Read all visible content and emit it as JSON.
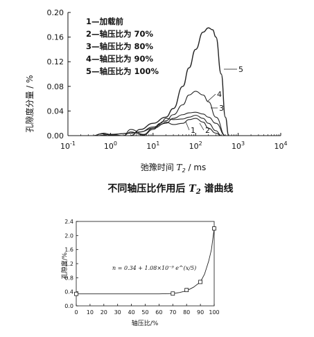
{
  "chart_data": [
    {
      "type": "line",
      "xscale": "log",
      "x_ticks": [
        "10^-1",
        "10^0",
        "10^1",
        "10^2",
        "10^3",
        "10^4"
      ],
      "y_ticks": [
        "0.00",
        "0.04",
        "0.08",
        "0.12",
        "0.16",
        "0.20"
      ],
      "xlim": [
        0.1,
        10000
      ],
      "ylim": [
        0,
        0.2
      ],
      "ylabel": "孔隙度分量 / %",
      "xlabel": "弛豫时间 T2 / ms",
      "legend": [
        "1—加载前",
        "2—轴压比为 70%",
        "3—轴压比为 80%",
        "4—轴压比为 90%",
        "5—轴压比为 100%"
      ],
      "curve_labels": [
        "1",
        "2",
        "3",
        "4",
        "5"
      ],
      "legend_placement": "top-left",
      "series": [
        {
          "name": "1—加载前",
          "x": [
            0.4,
            0.6,
            1,
            2,
            3,
            6,
            10,
            15,
            20,
            30,
            50,
            70,
            100,
            150,
            200,
            300,
            400
          ],
          "y": [
            0.0,
            0.003,
            0.001,
            0.0,
            0.006,
            0.001,
            0.01,
            0.018,
            0.022,
            0.018,
            0.02,
            0.026,
            0.028,
            0.022,
            0.012,
            0.004,
            0.0
          ]
        },
        {
          "name": "2—轴压比为 70%",
          "x": [
            0.4,
            0.7,
            1,
            2,
            3,
            6,
            10,
            15,
            20,
            30,
            50,
            70,
            100,
            150,
            200,
            300,
            400
          ],
          "y": [
            0.0,
            0.004,
            0.002,
            0.0,
            0.01,
            0.002,
            0.012,
            0.02,
            0.028,
            0.026,
            0.027,
            0.03,
            0.033,
            0.028,
            0.02,
            0.008,
            0.0
          ]
        },
        {
          "name": "3—轴压比为 80%",
          "x": [
            0.5,
            1,
            3,
            5,
            10,
            20,
            30,
            50,
            70,
            100,
            150,
            200,
            300,
            500
          ],
          "y": [
            0.0,
            0.002,
            0.004,
            0.006,
            0.012,
            0.02,
            0.028,
            0.034,
            0.037,
            0.038,
            0.035,
            0.03,
            0.02,
            0.0
          ]
        },
        {
          "name": "4—轴压比为 90%",
          "x": [
            0.5,
            1,
            3,
            5,
            10,
            20,
            30,
            50,
            70,
            100,
            150,
            200,
            300,
            500
          ],
          "y": [
            0.0,
            0.002,
            0.004,
            0.006,
            0.014,
            0.024,
            0.034,
            0.05,
            0.066,
            0.072,
            0.066,
            0.055,
            0.03,
            0.0
          ]
        },
        {
          "name": "5—轴压比为 100%",
          "x": [
            3,
            5,
            10,
            20,
            30,
            50,
            70,
            100,
            150,
            200,
            250,
            300,
            400,
            500,
            600
          ],
          "y": [
            0.0,
            0.01,
            0.02,
            0.03,
            0.044,
            0.08,
            0.11,
            0.14,
            0.168,
            0.175,
            0.172,
            0.16,
            0.1,
            0.03,
            0.0
          ]
        }
      ]
    },
    {
      "type": "scatter",
      "x_ticks": [
        "0",
        "10",
        "20",
        "30",
        "40",
        "50",
        "60",
        "70",
        "80",
        "90",
        "100"
      ],
      "y_ticks": [
        "0.0",
        "0.4",
        "0.8",
        "1.2",
        "1.6",
        "2.0",
        "2.4"
      ],
      "xlim": [
        0,
        100
      ],
      "ylim": [
        0,
        2.4
      ],
      "xlabel": "轴压比/%",
      "ylabel": "孔隙度/%",
      "equation": "n = 0.34 + 1.08×10⁻⁹ e^(x/5)",
      "series": [
        {
          "name": "",
          "x": [
            0,
            70,
            80,
            90,
            100
          ],
          "y": [
            0.34,
            0.35,
            0.45,
            0.68,
            2.2
          ]
        }
      ],
      "fit": {
        "x": [
          0,
          20,
          40,
          60,
          70,
          75,
          80,
          85,
          90,
          93,
          96,
          98,
          100
        ],
        "y": [
          0.34,
          0.34,
          0.34,
          0.34,
          0.35,
          0.38,
          0.43,
          0.53,
          0.68,
          0.9,
          1.27,
          1.6,
          2.2
        ]
      }
    }
  ],
  "caption": {
    "before": "不同轴压比作用后 ",
    "t": "T",
    "sub": "2",
    "after": " 谱曲线"
  },
  "colors": {
    "axis": "#111111",
    "line": "#222222"
  }
}
